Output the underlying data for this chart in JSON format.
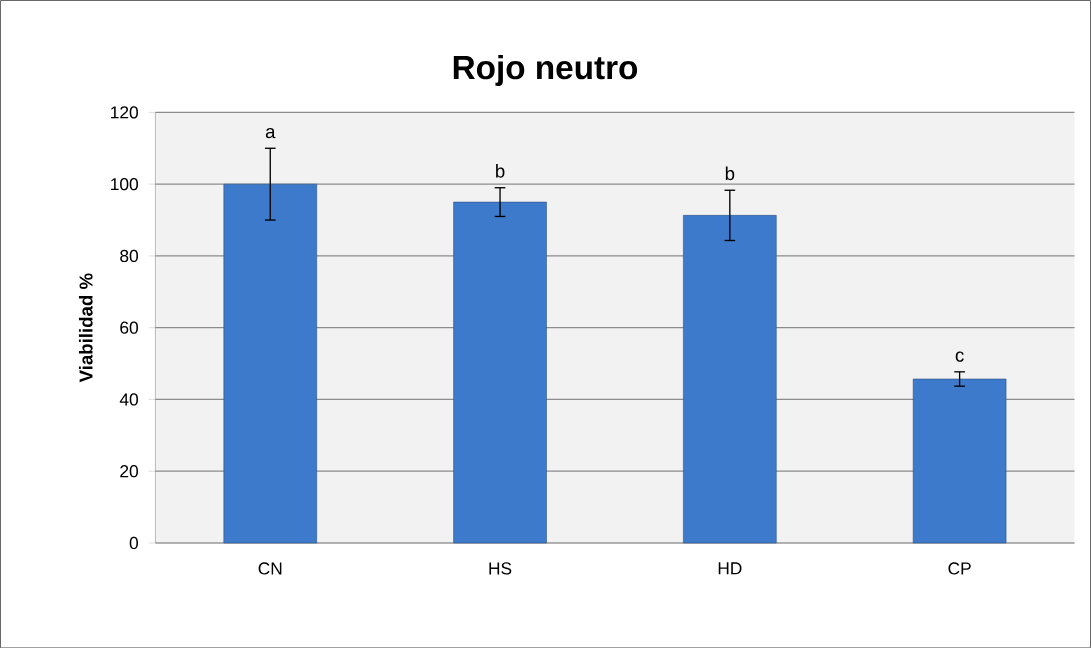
{
  "chart_data": {
    "type": "bar",
    "title": "Rojo neutro",
    "ylabel": "Viabilidad %",
    "categories": [
      "CN",
      "HS",
      "HD",
      "CP"
    ],
    "values": [
      100,
      95,
      91.3,
      45.7
    ],
    "errors": [
      10,
      4,
      7,
      2
    ],
    "color": "#3d7acb",
    "ylim": [
      0,
      120
    ],
    "yticks": [
      0,
      20,
      40,
      60,
      80,
      100,
      120
    ],
    "grid": "y",
    "annotations": [
      "a",
      "b",
      "b",
      "c"
    ]
  }
}
